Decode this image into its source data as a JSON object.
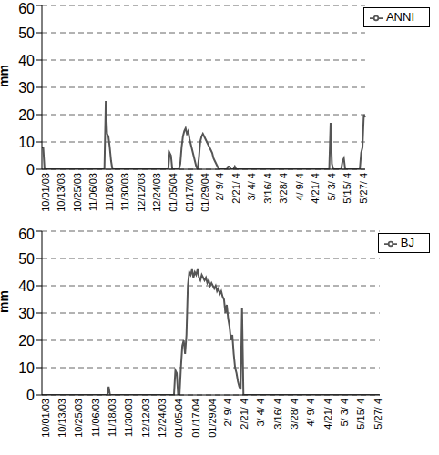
{
  "chart_data": [
    {
      "type": "line",
      "ylabel": "mm",
      "ylim": [
        0,
        60
      ],
      "yticks": [
        0,
        10,
        20,
        30,
        40,
        50,
        60
      ],
      "grid": true,
      "legend": "top-right",
      "categories": [
        "10/01/03",
        null,
        null,
        null,
        null,
        null,
        null,
        null,
        null,
        null,
        null,
        null,
        "10/13/03",
        null,
        null,
        null,
        null,
        null,
        null,
        null,
        null,
        null,
        null,
        null,
        "10/25/03",
        null,
        null,
        null,
        null,
        null,
        null,
        null,
        null,
        null,
        null,
        null,
        "11/06/03",
        null,
        null,
        null,
        null,
        null,
        null,
        null,
        null,
        null,
        null,
        null,
        "11/18/03",
        null,
        null,
        null,
        null,
        null,
        null,
        null,
        null,
        null,
        null,
        null,
        "11/30/03",
        null,
        null,
        null,
        null,
        null,
        null,
        null,
        null,
        null,
        null,
        null,
        "12/12/03",
        null,
        null,
        null,
        null,
        null,
        null,
        null,
        null,
        null,
        null,
        null,
        "12/24/03",
        null,
        null,
        null,
        null,
        null,
        null,
        null,
        null,
        null,
        null,
        null,
        "01/05/04",
        null,
        null,
        null,
        null,
        null,
        null,
        null,
        null,
        null,
        null,
        null,
        "01/17/04",
        null,
        null,
        null,
        null,
        null,
        null,
        null,
        null,
        null,
        null,
        null,
        "01/29/04",
        null,
        null,
        null,
        null,
        null,
        null,
        null,
        null,
        null,
        null,
        "2/ 9/ 4",
        null,
        null,
        null,
        null,
        null,
        null,
        null,
        null,
        null,
        null,
        null,
        "2/21/ 4",
        null,
        null,
        null,
        null,
        null,
        null,
        null,
        null,
        null,
        null,
        null,
        "3/ 4/ 4",
        null,
        null,
        null,
        null,
        null,
        null,
        null,
        null,
        null,
        null,
        null,
        "3/16/ 4",
        null,
        null,
        null,
        null,
        null,
        null,
        null,
        null,
        null,
        null,
        null,
        "3/28/ 4",
        null,
        null,
        null,
        null,
        null,
        null,
        null,
        null,
        null,
        null,
        null,
        "4/ 9/ 4",
        null,
        null,
        null,
        null,
        null,
        null,
        null,
        null,
        null,
        null,
        null,
        "4/21/ 4",
        null,
        null,
        null,
        null,
        null,
        null,
        null,
        null,
        null,
        null,
        null,
        "5/ 3/ 4",
        null,
        null,
        null,
        null,
        null,
        null,
        null,
        null,
        null,
        null,
        null,
        "5/15/ 4",
        null,
        null,
        null,
        null,
        null,
        null,
        null,
        null,
        null,
        null,
        null,
        "5/27/ 4",
        null,
        null,
        null,
        null
      ],
      "series": [
        {
          "name": "ANNI",
          "color": "#555555",
          "values": [
            8,
            8,
            0,
            0,
            0,
            0,
            0,
            0,
            0,
            0,
            0,
            0,
            0,
            0,
            0,
            0,
            0,
            0,
            0,
            0,
            0,
            0,
            0,
            0,
            0,
            0,
            0,
            0,
            0,
            0,
            0,
            0,
            0,
            0,
            0,
            0,
            0,
            0,
            0,
            0,
            0,
            0,
            0,
            0,
            0,
            0,
            0,
            0,
            25,
            13,
            12,
            8,
            3,
            0,
            0,
            0,
            0,
            0,
            0,
            0,
            0,
            0,
            0,
            0,
            0,
            0,
            0,
            0,
            0,
            0,
            0,
            0,
            0,
            0,
            0,
            0,
            0,
            0,
            0,
            0,
            0,
            0,
            0,
            0,
            0,
            0,
            0,
            0,
            0,
            0,
            0,
            0,
            0,
            0,
            0,
            0,
            6,
            5,
            0,
            0,
            0,
            0,
            0,
            0,
            2,
            8,
            12,
            14,
            15,
            13,
            14,
            11,
            9,
            7,
            5,
            3,
            1,
            0,
            4,
            10,
            12,
            13,
            12,
            11,
            10,
            9,
            8,
            7,
            6,
            4,
            3,
            2,
            1,
            0,
            0,
            0,
            0,
            0,
            0,
            0,
            1,
            1,
            0,
            0,
            0,
            1,
            0,
            0,
            0,
            0,
            0,
            0,
            0,
            0,
            0,
            0,
            0,
            0,
            0,
            0,
            0,
            0,
            0,
            0,
            0,
            0,
            0,
            0,
            0,
            0,
            0,
            0,
            0,
            0,
            0,
            0,
            0,
            0,
            0,
            0,
            0,
            0,
            0,
            0,
            0,
            0,
            0,
            0,
            0,
            0,
            0,
            0,
            0,
            0,
            0,
            0,
            0,
            0,
            0,
            0,
            0,
            0,
            0,
            0,
            0,
            0,
            0,
            0,
            0,
            0,
            0,
            0,
            0,
            0,
            0,
            0,
            0,
            17,
            2,
            0,
            0,
            0,
            0,
            0,
            0,
            0,
            3,
            4,
            0,
            0,
            0,
            0,
            0,
            0,
            0,
            0,
            0,
            0,
            0,
            0,
            6,
            8,
            20,
            19
          ]
        }
      ]
    },
    {
      "type": "line",
      "ylabel": "mm",
      "ylim": [
        0,
        60
      ],
      "yticks": [
        0,
        10,
        20,
        30,
        40,
        50,
        60
      ],
      "grid": true,
      "legend": "top-right",
      "categories": [
        "10/01/03",
        null,
        null,
        null,
        null,
        null,
        null,
        null,
        null,
        null,
        null,
        null,
        "10/13/03",
        null,
        null,
        null,
        null,
        null,
        null,
        null,
        null,
        null,
        null,
        null,
        "10/25/03",
        null,
        null,
        null,
        null,
        null,
        null,
        null,
        null,
        null,
        null,
        null,
        "11/06/03",
        null,
        null,
        null,
        null,
        null,
        null,
        null,
        null,
        null,
        null,
        null,
        "11/18/03",
        null,
        null,
        null,
        null,
        null,
        null,
        null,
        null,
        null,
        null,
        null,
        "11/30/03",
        null,
        null,
        null,
        null,
        null,
        null,
        null,
        null,
        null,
        null,
        null,
        "12/12/03",
        null,
        null,
        null,
        null,
        null,
        null,
        null,
        null,
        null,
        null,
        null,
        "12/24/03",
        null,
        null,
        null,
        null,
        null,
        null,
        null,
        null,
        null,
        null,
        null,
        "01/05/04",
        null,
        null,
        null,
        null,
        null,
        null,
        null,
        null,
        null,
        null,
        null,
        "01/17/04",
        null,
        null,
        null,
        null,
        null,
        null,
        null,
        null,
        null,
        null,
        null,
        "01/29/04",
        null,
        null,
        null,
        null,
        null,
        null,
        null,
        null,
        null,
        null,
        "2/ 9/ 4",
        null,
        null,
        null,
        null,
        null,
        null,
        null,
        null,
        null,
        null,
        null,
        "2/21/ 4",
        null,
        null,
        null,
        null,
        null,
        null,
        null,
        null,
        null,
        null,
        null,
        "3/ 4/ 4",
        null,
        null,
        null,
        null,
        null,
        null,
        null,
        null,
        null,
        null,
        null,
        "3/16/ 4",
        null,
        null,
        null,
        null,
        null,
        null,
        null,
        null,
        null,
        null,
        null,
        "3/28/ 4",
        null,
        null,
        null,
        null,
        null,
        null,
        null,
        null,
        null,
        null,
        null,
        "4/ 9/ 4",
        null,
        null,
        null,
        null,
        null,
        null,
        null,
        null,
        null,
        null,
        null,
        "4/21/ 4",
        null,
        null,
        null,
        null,
        null,
        null,
        null,
        null,
        null,
        null,
        null,
        "5/ 3/ 4",
        null,
        null,
        null,
        null,
        null,
        null,
        null,
        null,
        null,
        null,
        null,
        "5/15/ 4",
        null,
        null,
        null,
        null,
        null,
        null,
        null,
        null,
        null,
        null,
        null,
        "5/27/ 4",
        null,
        null,
        null,
        null
      ],
      "series": [
        {
          "name": "BJ",
          "color": "#555555",
          "values": [
            0,
            0,
            0,
            0,
            0,
            0,
            0,
            0,
            0,
            0,
            0,
            0,
            0,
            0,
            0,
            0,
            0,
            0,
            0,
            0,
            0,
            0,
            0,
            0,
            0,
            0,
            0,
            0,
            0,
            0,
            0,
            0,
            0,
            0,
            0,
            0,
            0,
            0,
            0,
            0,
            0,
            0,
            0,
            0,
            0,
            0,
            0,
            0,
            3,
            0,
            0,
            0,
            0,
            0,
            0,
            0,
            0,
            0,
            0,
            0,
            0,
            0,
            0,
            0,
            0,
            0,
            0,
            0,
            0,
            0,
            0,
            0,
            0,
            0,
            0,
            0,
            0,
            0,
            0,
            0,
            0,
            0,
            0,
            0,
            0,
            0,
            0,
            0,
            0,
            0,
            0,
            0,
            0,
            0,
            0,
            0,
            9,
            8,
            0,
            0,
            10,
            18,
            20,
            15,
            22,
            40,
            45,
            44,
            46,
            43,
            45,
            44,
            46,
            43,
            42,
            44,
            43,
            42,
            43,
            41,
            42,
            40,
            41,
            40,
            39,
            40,
            38,
            39,
            37,
            38,
            36,
            35,
            30,
            33,
            28,
            25,
            20,
            22,
            15,
            10,
            8,
            5,
            3,
            2,
            32,
            0,
            0,
            0,
            0,
            0,
            0,
            0,
            0,
            0,
            0,
            0,
            0,
            0,
            0,
            0,
            0,
            0,
            0,
            0,
            0,
            0,
            0,
            0,
            0,
            0,
            0,
            0,
            0,
            0,
            0,
            0,
            0,
            0,
            0,
            0,
            0,
            0,
            0,
            0,
            0,
            0,
            0,
            0,
            0,
            0,
            0,
            0,
            0,
            0,
            0,
            0,
            0,
            0,
            0,
            0,
            0,
            0,
            0,
            0,
            0,
            0,
            0,
            0,
            0,
            0,
            0,
            0,
            0,
            0,
            0,
            0,
            0,
            0,
            0,
            0,
            0,
            0,
            0,
            0,
            0,
            0,
            0,
            0,
            0,
            0,
            0,
            0,
            0,
            0,
            0,
            0,
            0,
            0,
            0,
            0,
            0,
            0,
            0,
            0
          ]
        }
      ]
    }
  ]
}
